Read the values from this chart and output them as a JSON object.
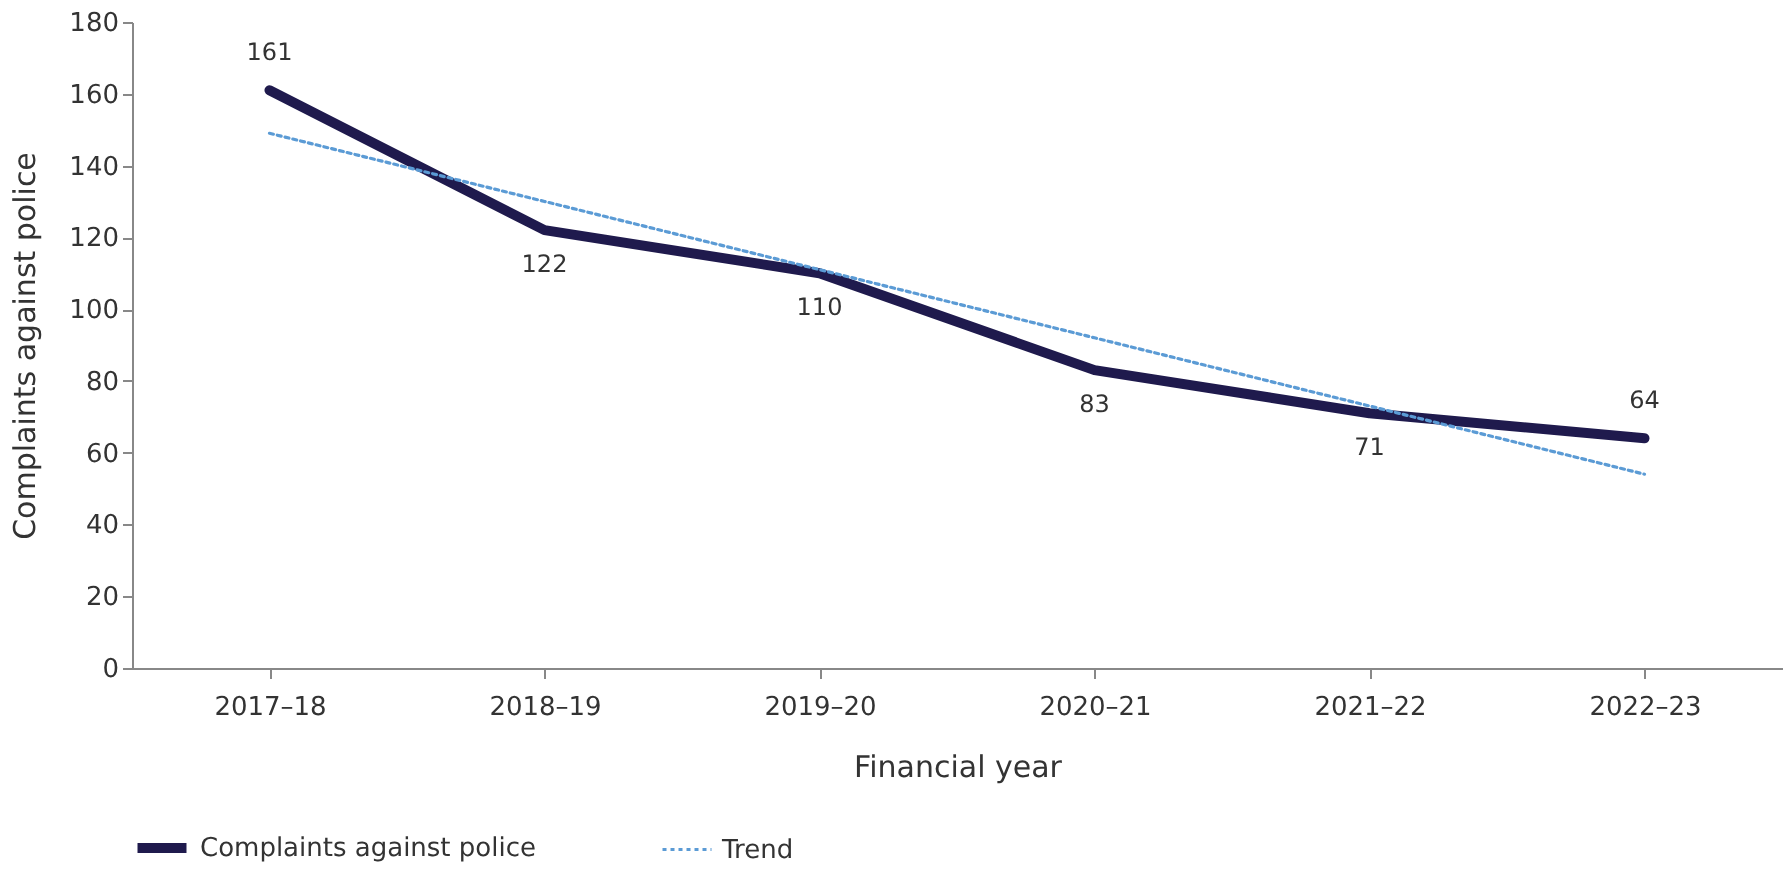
{
  "chart_data": {
    "type": "line",
    "xlabel": "Financial year",
    "ylabel": "Complaints against police",
    "categories": [
      "2017–18",
      "2018–19",
      "2019–20",
      "2020–21",
      "2021–22",
      "2022–23"
    ],
    "series": [
      {
        "name": "Complaints against police",
        "color": "#1f1a4d",
        "line_style": "solid",
        "values": [
          161,
          122,
          110,
          83,
          71,
          64
        ],
        "value_labels": [
          "161",
          "122",
          "110",
          "83",
          "71",
          "64"
        ]
      },
      {
        "name": "Trend",
        "color": "#5b9bd5",
        "line_style": "dotted",
        "values": [
          149,
          130,
          111,
          92,
          73,
          54
        ]
      }
    ],
    "ylim": [
      0,
      180
    ],
    "yticks": [
      0,
      20,
      40,
      60,
      80,
      100,
      120,
      140,
      160,
      180
    ],
    "grid": false,
    "legend": "bottom",
    "marker": "none"
  }
}
